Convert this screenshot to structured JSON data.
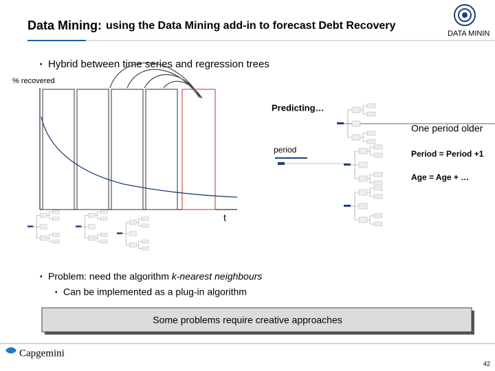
{
  "header": {
    "title_bold": "Data Mining:",
    "title_rest": "using the Data Mining add-in to forecast Debt Recovery",
    "logo_text": "DATA MININ"
  },
  "bullets": {
    "first": "Hybrid between time series and regression trees",
    "second_lead": "Problem: need the algorithm ",
    "second_italic": "k-nearest neighbours",
    "sub": "Can be implemented as a plug-in algorithm"
  },
  "diagram": {
    "y_label": "% recovered",
    "x_label": "t",
    "predicting": "Predicting…",
    "period": "period",
    "older": "One period older",
    "period_rule": "Period = Period +1",
    "age_rule": "Age = Age + …"
  },
  "callout": "Some problems require creative approaches",
  "footer": {
    "brand": "Capgemini",
    "page": "42"
  }
}
